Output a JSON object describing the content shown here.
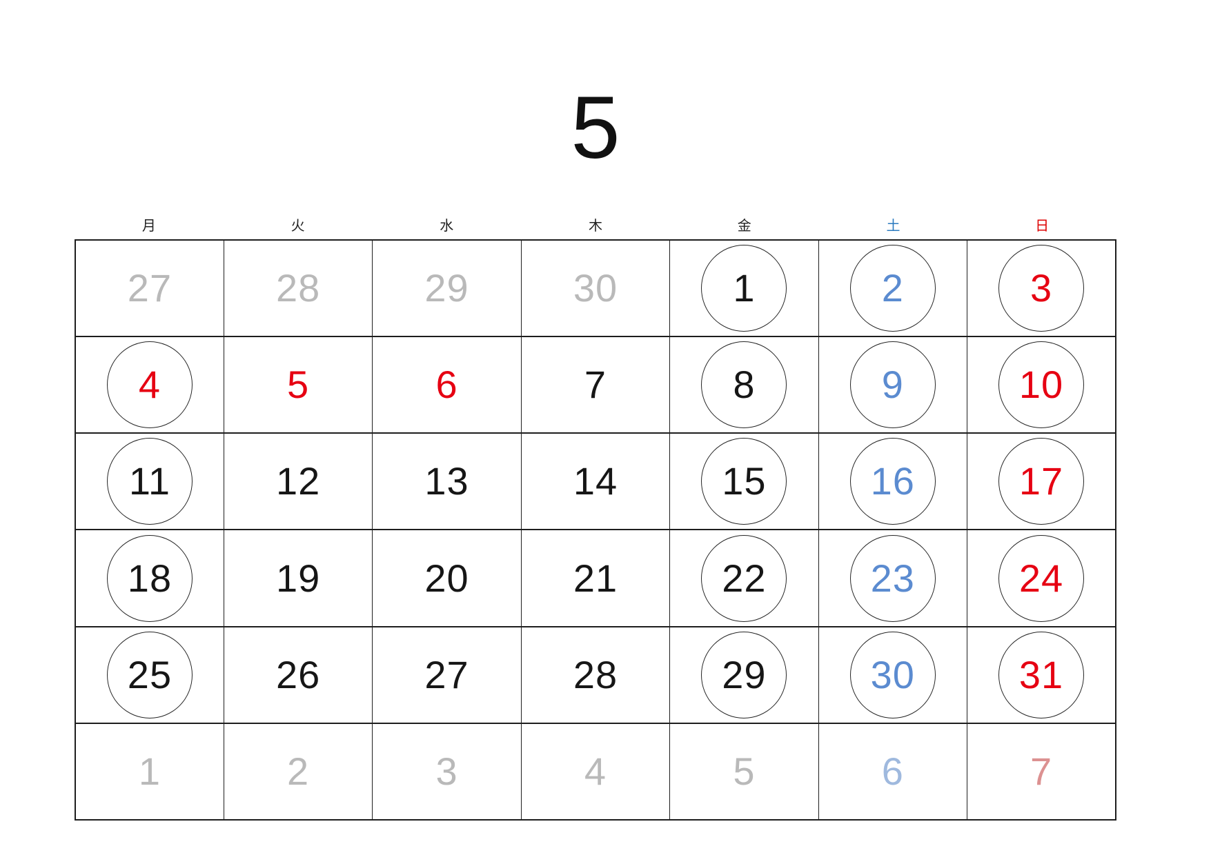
{
  "title": "5",
  "colors": {
    "weekday_black": "#222222",
    "saturday_header_blue": "#2a7abf",
    "sunday_header_red": "#dd0000",
    "date_black": "#161616",
    "date_red": "#e60012",
    "date_blue": "#5b8bd0",
    "adjacent_month_gray": "#b9b9b9",
    "adjacent_month_blue": "#9fb9de",
    "adjacent_month_red": "#dc9191",
    "grid_border": "#1d1d1d"
  },
  "weekdays": [
    {
      "label": "月",
      "variant": "normal"
    },
    {
      "label": "火",
      "variant": "normal"
    },
    {
      "label": "水",
      "variant": "normal"
    },
    {
      "label": "木",
      "variant": "normal"
    },
    {
      "label": "金",
      "variant": "normal"
    },
    {
      "label": "土",
      "variant": "sat"
    },
    {
      "label": "日",
      "variant": "sun"
    }
  ],
  "grid": {
    "rows": [
      [
        {
          "day": "27",
          "variant": "muted",
          "circled": false
        },
        {
          "day": "28",
          "variant": "muted",
          "circled": false
        },
        {
          "day": "29",
          "variant": "muted",
          "circled": false
        },
        {
          "day": "30",
          "variant": "muted",
          "circled": false
        },
        {
          "day": "1",
          "variant": "normal",
          "circled": true
        },
        {
          "day": "2",
          "variant": "blue",
          "circled": true
        },
        {
          "day": "3",
          "variant": "red",
          "circled": true
        }
      ],
      [
        {
          "day": "4",
          "variant": "red",
          "circled": true
        },
        {
          "day": "5",
          "variant": "red",
          "circled": false
        },
        {
          "day": "6",
          "variant": "red",
          "circled": false
        },
        {
          "day": "7",
          "variant": "normal",
          "circled": false
        },
        {
          "day": "8",
          "variant": "normal",
          "circled": true
        },
        {
          "day": "9",
          "variant": "blue",
          "circled": true
        },
        {
          "day": "10",
          "variant": "red",
          "circled": true
        }
      ],
      [
        {
          "day": "11",
          "variant": "normal",
          "circled": true
        },
        {
          "day": "12",
          "variant": "normal",
          "circled": false
        },
        {
          "day": "13",
          "variant": "normal",
          "circled": false
        },
        {
          "day": "14",
          "variant": "normal",
          "circled": false
        },
        {
          "day": "15",
          "variant": "normal",
          "circled": true
        },
        {
          "day": "16",
          "variant": "blue",
          "circled": true
        },
        {
          "day": "17",
          "variant": "red",
          "circled": true
        }
      ],
      [
        {
          "day": "18",
          "variant": "normal",
          "circled": true
        },
        {
          "day": "19",
          "variant": "normal",
          "circled": false
        },
        {
          "day": "20",
          "variant": "normal",
          "circled": false
        },
        {
          "day": "21",
          "variant": "normal",
          "circled": false
        },
        {
          "day": "22",
          "variant": "normal",
          "circled": true
        },
        {
          "day": "23",
          "variant": "blue",
          "circled": true
        },
        {
          "day": "24",
          "variant": "red",
          "circled": true
        }
      ],
      [
        {
          "day": "25",
          "variant": "normal",
          "circled": true
        },
        {
          "day": "26",
          "variant": "normal",
          "circled": false
        },
        {
          "day": "27",
          "variant": "normal",
          "circled": false
        },
        {
          "day": "28",
          "variant": "normal",
          "circled": false
        },
        {
          "day": "29",
          "variant": "normal",
          "circled": true
        },
        {
          "day": "30",
          "variant": "blue",
          "circled": true
        },
        {
          "day": "31",
          "variant": "red",
          "circled": true
        }
      ],
      [
        {
          "day": "1",
          "variant": "muted",
          "circled": false
        },
        {
          "day": "2",
          "variant": "muted",
          "circled": false
        },
        {
          "day": "3",
          "variant": "muted",
          "circled": false
        },
        {
          "day": "4",
          "variant": "muted",
          "circled": false
        },
        {
          "day": "5",
          "variant": "muted",
          "circled": false
        },
        {
          "day": "6",
          "variant": "muted-blue",
          "circled": false
        },
        {
          "day": "7",
          "variant": "muted-red",
          "circled": false
        }
      ]
    ]
  }
}
